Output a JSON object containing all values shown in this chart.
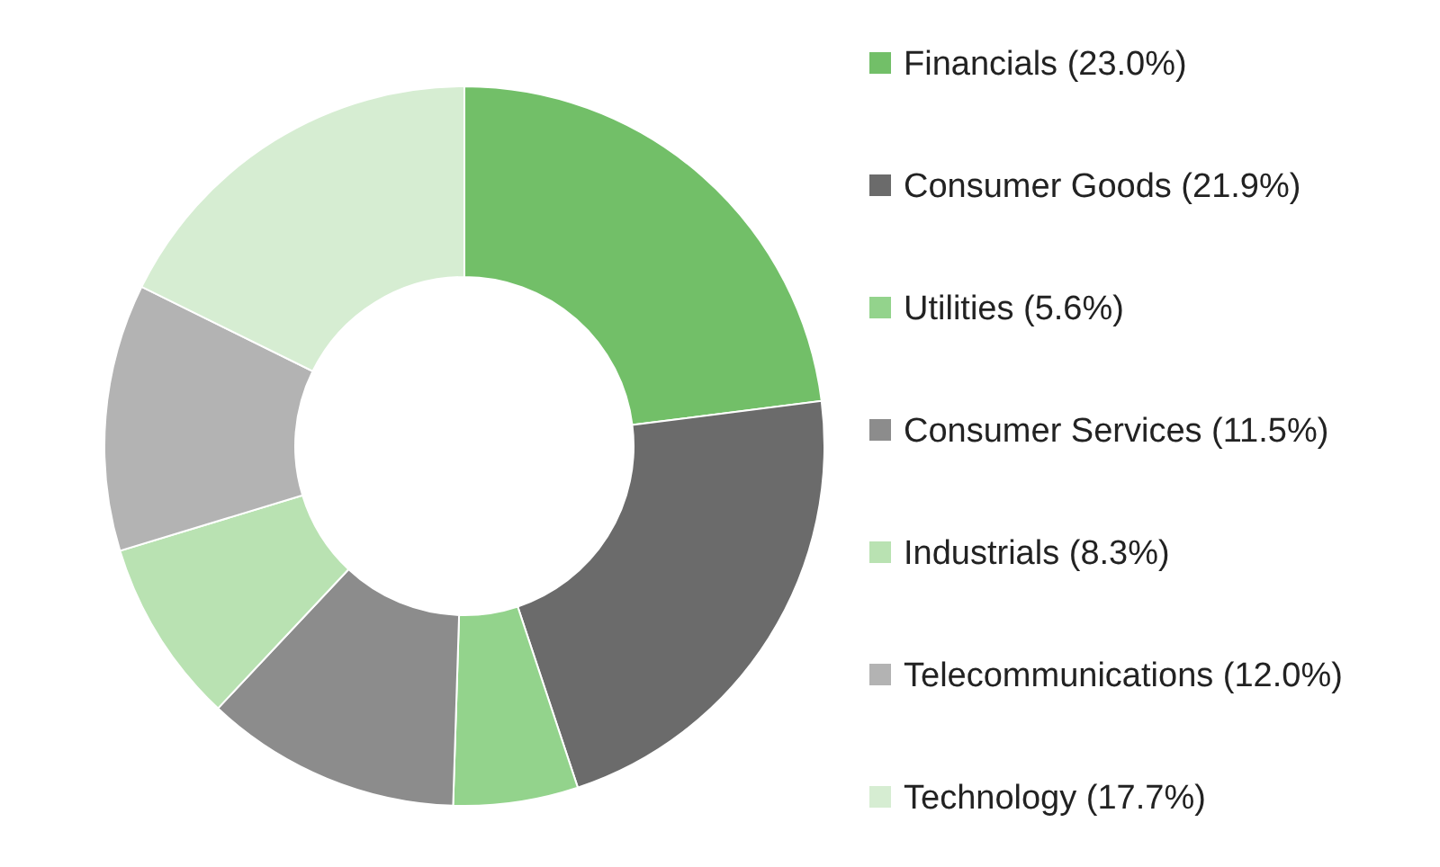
{
  "chart_data": {
    "type": "donut",
    "categories": [
      "Financials (23.0%)",
      "Consumer Goods (21.9%)",
      "Utilities (5.6%)",
      "Consumer Services (11.5%)",
      "Industrials (8.3%)",
      "Telecommunications (12.0%)",
      "Technology (17.7%)"
    ],
    "values": [
      23.0,
      21.9,
      5.6,
      11.5,
      8.3,
      12.0,
      17.7
    ],
    "colors": [
      "#72bf68",
      "#6b6b6b",
      "#93d38c",
      "#8c8c8c",
      "#b9e2b2",
      "#b3b3b3",
      "#d6edd2"
    ],
    "legend": "right"
  }
}
